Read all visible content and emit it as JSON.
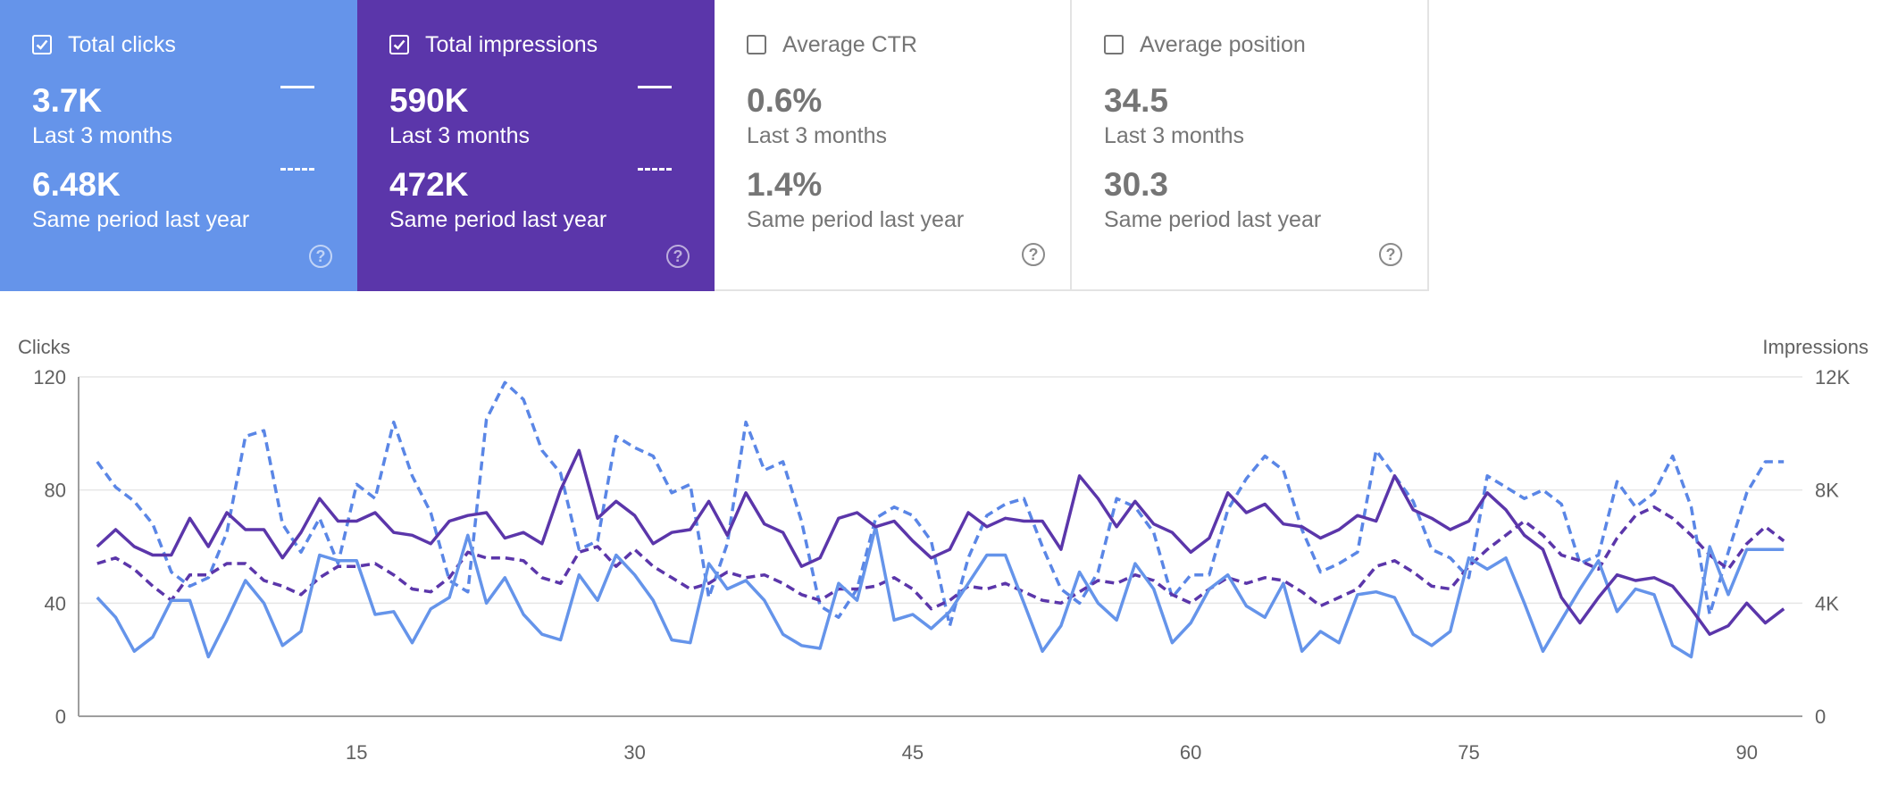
{
  "cards": [
    {
      "title": "Total clicks",
      "checked": true,
      "value": "3.7K",
      "value_label": "Last 3 months",
      "compare_value": "6.48K",
      "compare_label": "Same period last year",
      "color": "#6594ea"
    },
    {
      "title": "Total impressions",
      "checked": true,
      "value": "590K",
      "value_label": "Last 3 months",
      "compare_value": "472K",
      "compare_label": "Same period last year",
      "color": "#5b36aa"
    },
    {
      "title": "Average CTR",
      "checked": false,
      "value": "0.6%",
      "value_label": "Last 3 months",
      "compare_value": "1.4%",
      "compare_label": "Same period last year"
    },
    {
      "title": "Average position",
      "checked": false,
      "value": "34.5",
      "value_label": "Last 3 months",
      "compare_value": "30.3",
      "compare_label": "Same period last year"
    }
  ],
  "help_glyph": "?",
  "chart_data": {
    "type": "line",
    "left_axis_label": "Clicks",
    "right_axis_label": "Impressions",
    "left_ylim": [
      0,
      120
    ],
    "right_ylim": [
      0,
      12000
    ],
    "left_ticks": [
      "0",
      "40",
      "80",
      "120"
    ],
    "right_ticks": [
      "0",
      "4K",
      "8K",
      "12K"
    ],
    "xlim": [
      0,
      93
    ],
    "x_ticks": [
      15,
      30,
      45,
      60,
      75,
      90
    ],
    "grid": true,
    "x": [
      1,
      2,
      3,
      4,
      5,
      6,
      7,
      8,
      9,
      10,
      11,
      12,
      13,
      14,
      15,
      16,
      17,
      18,
      19,
      20,
      21,
      22,
      23,
      24,
      25,
      26,
      27,
      28,
      29,
      30,
      31,
      32,
      33,
      34,
      35,
      36,
      37,
      38,
      39,
      40,
      41,
      42,
      43,
      44,
      45,
      46,
      47,
      48,
      49,
      50,
      51,
      52,
      53,
      54,
      55,
      56,
      57,
      58,
      59,
      60,
      61,
      62,
      63,
      64,
      65,
      66,
      67,
      68,
      69,
      70,
      71,
      72,
      73,
      74,
      75,
      76,
      77,
      78,
      79,
      80,
      81,
      82,
      83,
      84,
      85,
      86,
      87,
      88,
      89,
      90,
      91,
      92
    ],
    "series": [
      {
        "name": "Total clicks",
        "axis": "left",
        "dashed": false,
        "color": "#6594ea",
        "values": [
          42,
          35,
          23,
          28,
          41,
          41,
          21,
          34,
          48,
          40,
          25,
          30,
          57,
          55,
          55,
          36,
          37,
          26,
          38,
          42,
          64,
          40,
          49,
          36,
          29,
          27,
          50,
          41,
          57,
          50,
          41,
          27,
          26,
          54,
          45,
          48,
          41,
          29,
          25,
          24,
          47,
          41,
          67,
          34,
          36,
          31,
          37,
          47,
          57,
          57,
          40,
          23,
          32,
          51,
          40,
          34,
          54,
          45,
          26,
          33,
          45,
          50,
          39,
          35,
          47,
          23,
          30,
          26,
          43,
          44,
          42,
          29,
          25,
          30,
          56,
          52,
          56,
          40,
          23,
          34,
          45,
          55,
          37,
          45,
          43,
          25,
          21,
          60,
          43,
          59,
          59,
          59
        ]
      },
      {
        "name": "Total impressions",
        "axis": "right",
        "dashed": false,
        "color": "#5b36aa",
        "values": [
          6000,
          6600,
          6000,
          5700,
          5700,
          7000,
          6000,
          7200,
          6600,
          6600,
          5600,
          6500,
          7700,
          6900,
          6900,
          7200,
          6500,
          6400,
          6100,
          6900,
          7100,
          7200,
          6300,
          6500,
          6100,
          8000,
          9400,
          7000,
          7600,
          7100,
          6100,
          6500,
          6600,
          7600,
          6400,
          7900,
          6800,
          6500,
          5300,
          5600,
          7000,
          7200,
          6700,
          6900,
          6200,
          5600,
          5900,
          7200,
          6700,
          7000,
          6900,
          6900,
          5900,
          8500,
          7700,
          6700,
          7600,
          6800,
          6500,
          5800,
          6300,
          7900,
          7200,
          7500,
          6800,
          6700,
          6300,
          6600,
          7100,
          6900,
          8500,
          7300,
          7000,
          6600,
          6900,
          7900,
          7300,
          6400,
          5900,
          4200,
          3300,
          4200,
          5000,
          4800,
          4900,
          4600,
          3800,
          2900,
          3200,
          4000,
          3300,
          3800
        ]
      },
      {
        "name": "Clicks same period last year",
        "axis": "left",
        "dashed": true,
        "color": "#5a86e6",
        "values": [
          90,
          81,
          76,
          68,
          51,
          46,
          49,
          65,
          99,
          101,
          68,
          58,
          70,
          54,
          82,
          77,
          104,
          85,
          72,
          48,
          44,
          105,
          118,
          112,
          94,
          86,
          59,
          62,
          99,
          95,
          92,
          79,
          82,
          42,
          61,
          104,
          87,
          90,
          69,
          39,
          35,
          45,
          70,
          74,
          71,
          62,
          32,
          56,
          71,
          75,
          77,
          60,
          45,
          40,
          51,
          77,
          74,
          65,
          42,
          50,
          50,
          73,
          84,
          92,
          87,
          66,
          51,
          54,
          58,
          94,
          85,
          76,
          59,
          56,
          49,
          85,
          81,
          77,
          80,
          75,
          54,
          57,
          83,
          74,
          79,
          92,
          74,
          36,
          58,
          79,
          90,
          90
        ]
      },
      {
        "name": "Impressions same period last year",
        "axis": "right",
        "dashed": true,
        "color": "#5b36aa",
        "values": [
          5400,
          5600,
          5200,
          4600,
          4100,
          5000,
          5000,
          5400,
          5400,
          4800,
          4600,
          4300,
          4900,
          5300,
          5300,
          5400,
          5000,
          4500,
          4400,
          4900,
          5800,
          5600,
          5600,
          5500,
          4900,
          4700,
          5800,
          6000,
          5300,
          5900,
          5300,
          4900,
          4500,
          4700,
          5100,
          4900,
          5000,
          4700,
          4300,
          4100,
          4500,
          4500,
          4600,
          4900,
          4500,
          3800,
          4100,
          4600,
          4500,
          4700,
          4400,
          4100,
          4000,
          4400,
          4800,
          4700,
          5000,
          4800,
          4300,
          4000,
          4500,
          4900,
          4700,
          4900,
          4800,
          4400,
          3900,
          4200,
          4500,
          5300,
          5500,
          5100,
          4600,
          4500,
          5300,
          5900,
          6400,
          6900,
          6400,
          5700,
          5500,
          5200,
          6300,
          7100,
          7400,
          7000,
          6400,
          5700,
          5200,
          6100,
          6700,
          6200
        ]
      }
    ]
  }
}
